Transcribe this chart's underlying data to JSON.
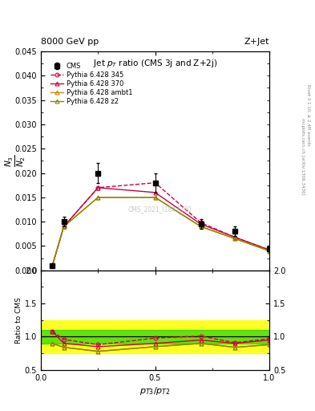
{
  "header_left": "8000 GeV pp",
  "header_right": "Z+Jet",
  "title": "Jet $p_T$ ratio (CMS 3j and Z+2j)",
  "ylabel_main": "$N_3/N_2$",
  "ylabel_ratio": "Ratio to CMS",
  "xlabel": "$p_{T3}/p_{T2}$",
  "watermark": "CMS_2021_I1847230",
  "right_label_top": "Rivet 3.1.10, ≥ 2.4M events",
  "right_label_bot": "mcplots.cern.ch [arXiv:1306.3436]",
  "cms_x": [
    0.05,
    0.1,
    0.25,
    0.5,
    0.7,
    0.85,
    1.0
  ],
  "cms_y": [
    0.001,
    0.01,
    0.02,
    0.018,
    0.0095,
    0.008,
    0.0045
  ],
  "cms_yerr": [
    0.0003,
    0.001,
    0.002,
    0.002,
    0.001,
    0.001,
    0.0005
  ],
  "p345_x": [
    0.05,
    0.1,
    0.25,
    0.5,
    0.7,
    0.85,
    1.0
  ],
  "p345_y": [
    0.001,
    0.009,
    0.017,
    0.018,
    0.0098,
    0.0068,
    0.0042
  ],
  "p370_x": [
    0.05,
    0.1,
    0.25,
    0.5,
    0.7,
    0.85,
    1.0
  ],
  "p370_y": [
    0.001,
    0.009,
    0.017,
    0.016,
    0.0095,
    0.0068,
    0.0042
  ],
  "pambt1_x": [
    0.05,
    0.1,
    0.25,
    0.5,
    0.7,
    0.85,
    1.0
  ],
  "pambt1_y": [
    0.001,
    0.009,
    0.015,
    0.015,
    0.009,
    0.0065,
    0.004
  ],
  "pz2_x": [
    0.05,
    0.1,
    0.25,
    0.5,
    0.7,
    0.85,
    1.0
  ],
  "pz2_y": [
    0.001,
    0.009,
    0.015,
    0.015,
    0.009,
    0.0065,
    0.004
  ],
  "ratio_p345": [
    1.08,
    0.96,
    0.88,
    0.98,
    1.01,
    0.91,
    0.97
  ],
  "ratio_p370": [
    1.08,
    0.9,
    0.85,
    0.9,
    0.95,
    0.9,
    0.95
  ],
  "ratio_pambt1": [
    0.9,
    0.84,
    0.78,
    0.85,
    0.9,
    0.84,
    0.88
  ],
  "ratio_pz2": [
    0.9,
    0.84,
    0.78,
    0.85,
    0.9,
    0.84,
    0.88
  ],
  "band_yellow_lo": 0.75,
  "band_yellow_hi": 1.25,
  "band_green_lo": 0.9,
  "band_green_hi": 1.1,
  "color_345": "#cc0044",
  "color_370": "#cc0044",
  "color_ambt1": "#cc8800",
  "color_z2": "#888800",
  "ylim_main": [
    0.0,
    0.045
  ],
  "ylim_ratio": [
    0.5,
    2.0
  ],
  "xlim": [
    0.0,
    1.0
  ]
}
